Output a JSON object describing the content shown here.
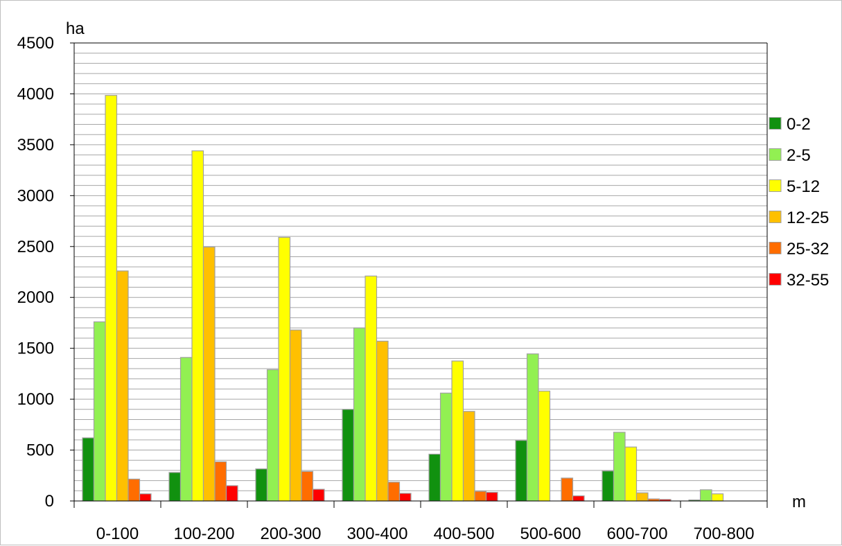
{
  "chart_data": {
    "type": "bar",
    "title": "",
    "ylabel": "ha",
    "xlabel": "m",
    "ylim": [
      0,
      4500
    ],
    "yticks": [
      0,
      500,
      1000,
      1500,
      2000,
      2500,
      3000,
      3500,
      4000,
      4500
    ],
    "grid": true,
    "legend_position": "right",
    "categories": [
      "0-100",
      "100-200",
      "200-300",
      "300-400",
      "400-500",
      "500-600",
      "600-700",
      "700-800"
    ],
    "series": [
      {
        "name": "0-2",
        "color": "#11910f",
        "values": [
          620,
          280,
          315,
          900,
          460,
          595,
          295,
          10
        ]
      },
      {
        "name": "2-5",
        "color": "#92f052",
        "values": [
          1760,
          1410,
          1290,
          1700,
          1060,
          1445,
          675,
          110
        ]
      },
      {
        "name": "5-12",
        "color": "#ffff00",
        "values": [
          3985,
          3440,
          2590,
          2210,
          1375,
          1080,
          530,
          70
        ]
      },
      {
        "name": "12-25",
        "color": "#ffc000",
        "values": [
          2260,
          2495,
          1680,
          1570,
          880,
          0,
          80,
          0
        ]
      },
      {
        "name": "25-32",
        "color": "#ff6d00",
        "values": [
          215,
          385,
          290,
          185,
          95,
          225,
          20,
          0
        ]
      },
      {
        "name": "32-55",
        "color": "#ff0000",
        "values": [
          70,
          150,
          115,
          75,
          85,
          50,
          15,
          0
        ]
      }
    ]
  }
}
